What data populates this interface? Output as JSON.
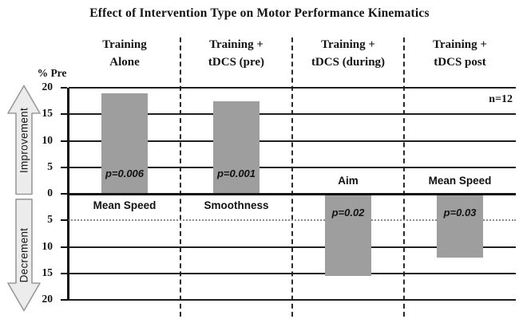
{
  "chart_data": {
    "type": "bar",
    "title": "Effect of Intervention Type on Motor Performance Kinematics",
    "y_axis_label": "% Pre",
    "annotation": "n=12",
    "ylim": [
      -20,
      20
    ],
    "yticks": [
      20,
      15,
      10,
      5,
      0,
      -5,
      -10,
      -15,
      -20
    ],
    "dotted_gridlines": [
      -5
    ],
    "grid": true,
    "legend": "none",
    "axis_direction_labels": {
      "up": "Improvement",
      "down": "Decrement"
    },
    "categories": [
      "Training Alone",
      "Training + tDCS (pre)",
      "Training + tDCS (during)",
      "Training + tDCS post"
    ],
    "category_lines": [
      [
        "Training",
        "Alone"
      ],
      [
        "Training +",
        "tDCS (pre)"
      ],
      [
        "Training +",
        "tDCS (during)"
      ],
      [
        "Training +",
        "tDCS post"
      ]
    ],
    "bars": [
      {
        "category": "Training Alone",
        "measure": "Mean Speed",
        "p_label": "p=0.006",
        "value": 19
      },
      {
        "category": "Training + tDCS (pre)",
        "measure": "Smoothness",
        "p_label": "p=0.001",
        "value": 17.5
      },
      {
        "category": "Training + tDCS (during)",
        "measure": "Aim",
        "p_label": "p=0.02",
        "value": -15.5
      },
      {
        "category": "Training + tDCS post",
        "measure": "Mean Speed",
        "p_label": "p=0.03",
        "value": -12
      }
    ],
    "colors": {
      "bar_fill": "#9e9e9e",
      "arrow_fill": "#ececec",
      "arrow_border": "#9a9a9a",
      "line": "#1f1f1f",
      "dotted_line": "#8d8d8d",
      "background": "#ffffff"
    }
  }
}
